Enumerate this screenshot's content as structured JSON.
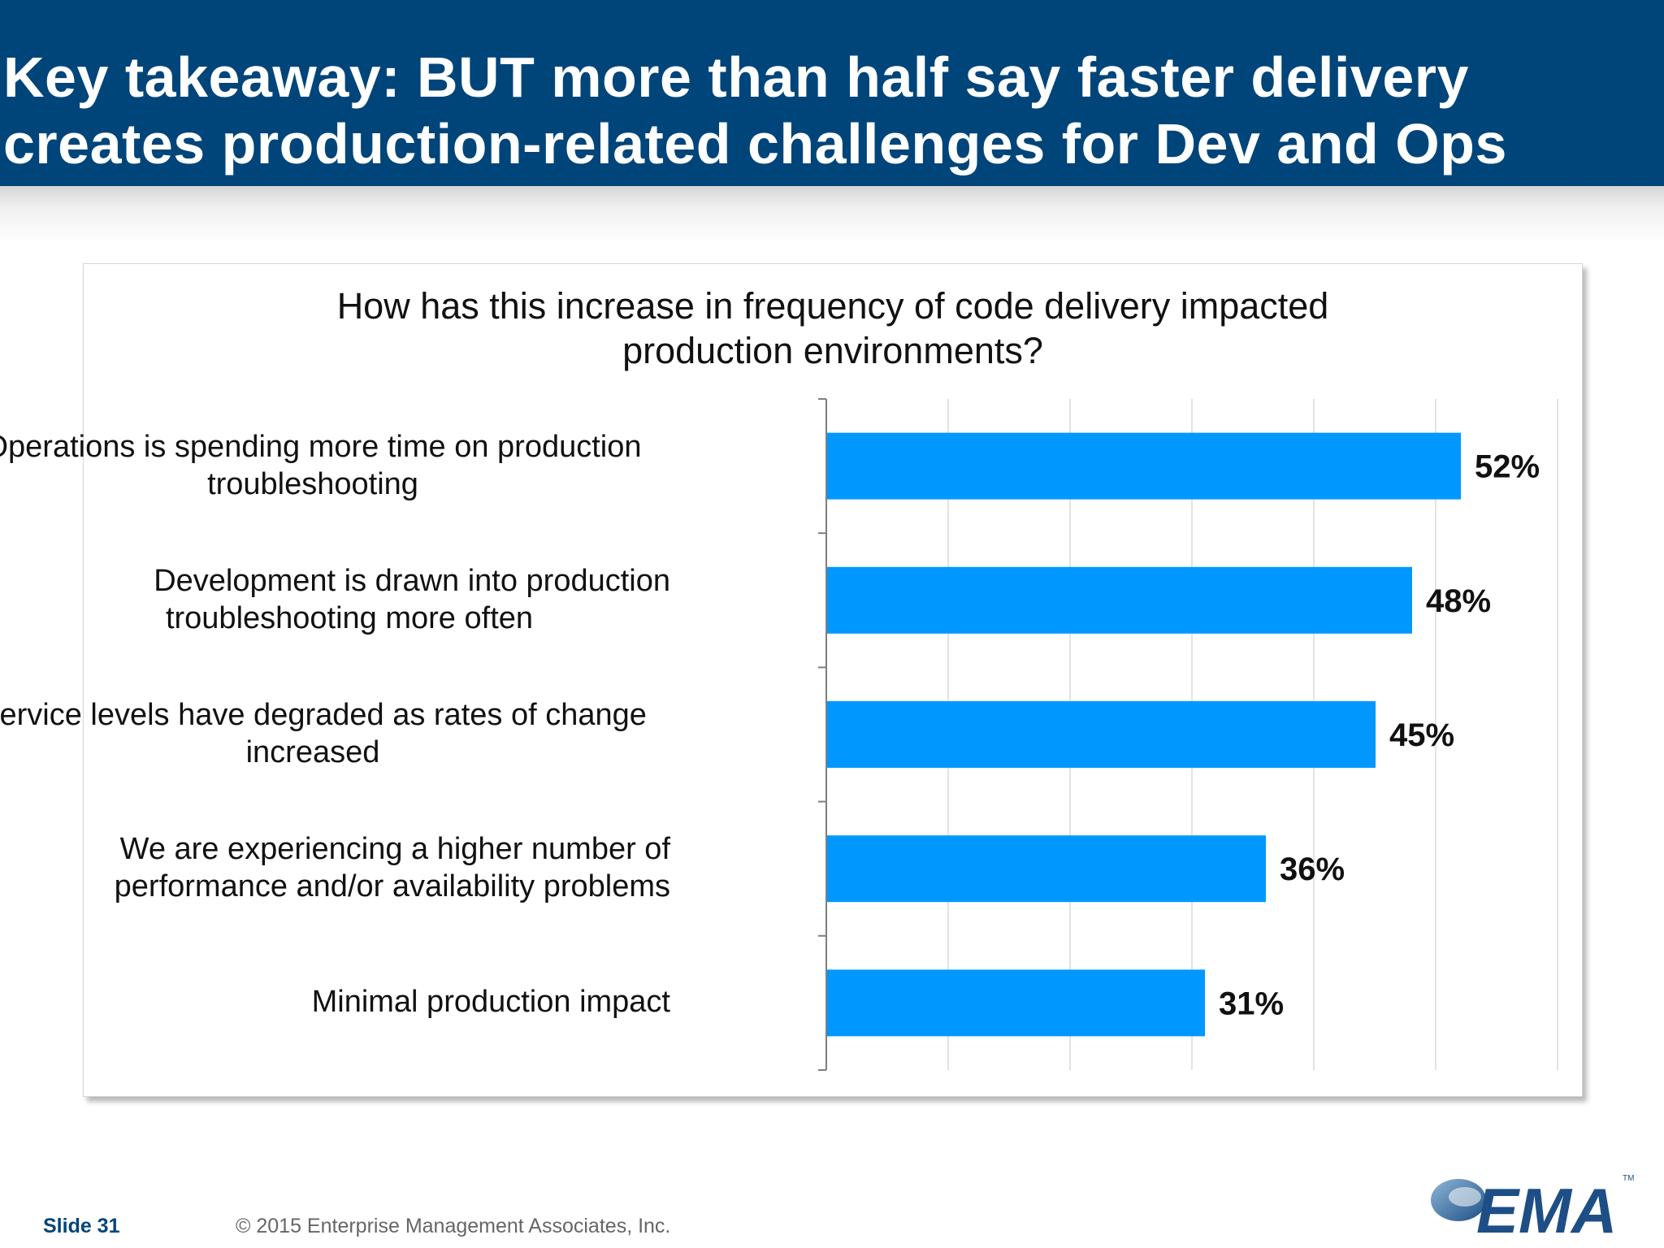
{
  "slide": {
    "title": "Key takeaway: BUT more than half say faster delivery creates production-related challenges for Dev and Ops",
    "slide_number": "Slide 31",
    "copyright": "© 2015 Enterprise Management Associates, Inc.",
    "logo_text": "EMA",
    "logo_tm": "TM"
  },
  "colors": {
    "header": "#00457a",
    "bar": "#0098ff",
    "footer_slide": "#00457a"
  },
  "chart_data": {
    "type": "bar",
    "orientation": "horizontal",
    "title_lines": [
      "How has this increase in frequency of code delivery impacted",
      "production environments?"
    ],
    "categories": [
      [
        "Operations is spending more time on production",
        "troubleshooting"
      ],
      [
        "Development is drawn into production",
        "troubleshooting more often"
      ],
      [
        "Service levels have degraded as rates of change",
        "increased"
      ],
      [
        "We are experiencing a higher number of",
        "performance and/or availability problems"
      ],
      [
        "Minimal production impact"
      ]
    ],
    "values": [
      52,
      48,
      45,
      36,
      31
    ],
    "value_labels": [
      "52%",
      "48%",
      "45%",
      "36%",
      "31%"
    ],
    "unit": "%",
    "xlim": [
      0,
      60
    ],
    "grid": true,
    "gridline_step": 10,
    "legend": false
  }
}
